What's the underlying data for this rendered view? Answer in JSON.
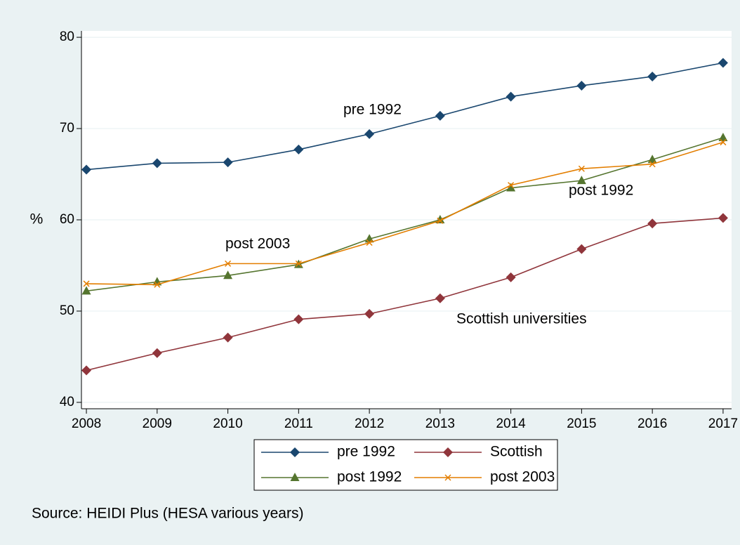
{
  "chart_data": {
    "type": "line",
    "y_label": "%",
    "source": "Source: HEIDI Plus (HESA various years)",
    "annotations": [
      "pre 1992",
      "post 1992",
      "post 2003",
      "Scottish universities"
    ],
    "x": [
      2008,
      2009,
      2010,
      2011,
      2012,
      2013,
      2014,
      2015,
      2016,
      2017
    ],
    "xlim": [
      2007.93,
      2017.12
    ],
    "xticks": [
      2008,
      2009,
      2010,
      2011,
      2012,
      2013,
      2014,
      2015,
      2016,
      2017
    ],
    "ylim": [
      39.3,
      80.7
    ],
    "yticks": [
      40,
      50,
      60,
      70,
      80
    ],
    "grid": true,
    "series": [
      {
        "name": "pre 1992",
        "color": "#1a476f",
        "marker": "diamond",
        "values": [
          65.5,
          66.2,
          66.3,
          67.7,
          69.4,
          71.4,
          73.5,
          74.7,
          75.7,
          77.2
        ]
      },
      {
        "name": "Scottish",
        "color": "#90353b",
        "marker": "diamond",
        "values": [
          43.5,
          45.4,
          47.1,
          49.1,
          49.7,
          51.4,
          53.7,
          56.8,
          59.6,
          60.2
        ]
      },
      {
        "name": "post 1992",
        "color": "#55752f",
        "marker": "triangle",
        "values": [
          52.2,
          53.2,
          53.9,
          55.1,
          57.9,
          60.0,
          63.5,
          64.3,
          66.6,
          69.0
        ]
      },
      {
        "name": "post 2003",
        "color": "#e37e00",
        "marker": "x",
        "values": [
          53.0,
          52.9,
          55.2,
          55.2,
          57.5,
          59.9,
          63.8,
          65.6,
          66.1,
          68.5
        ]
      }
    ]
  }
}
